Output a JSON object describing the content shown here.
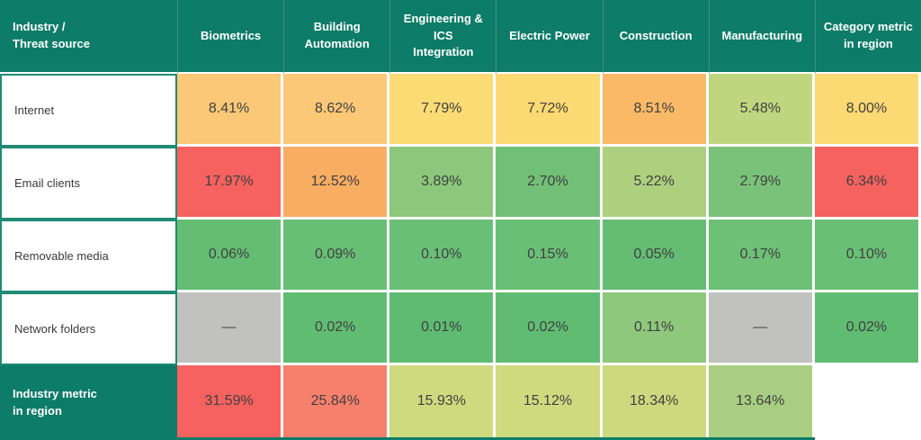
{
  "chart_data": {
    "type": "heatmap",
    "title": "",
    "corner_label": "Industry /\nThreat source",
    "columns": [
      "Biometrics",
      "Building\nAutomation",
      "Engineering & ICS\nIntegration",
      "Electric Power",
      "Construction",
      "Manufacturing",
      "Category metric\nin region"
    ],
    "rows": [
      {
        "label": "Internet",
        "is_footer": false,
        "cells": [
          {
            "value": 8.41,
            "display": "8.41%",
            "bg": "#fbc877"
          },
          {
            "value": 8.62,
            "display": "8.62%",
            "bg": "#fbc877"
          },
          {
            "value": 7.79,
            "display": "7.79%",
            "bg": "#fbdb74"
          },
          {
            "value": 7.72,
            "display": "7.72%",
            "bg": "#fbd973"
          },
          {
            "value": 8.51,
            "display": "8.51%",
            "bg": "#f9b967"
          },
          {
            "value": 5.48,
            "display": "5.48%",
            "bg": "#bed77f"
          },
          {
            "value": 8.0,
            "display": "8.00%",
            "bg": "#fbd973"
          }
        ]
      },
      {
        "label": "Email clients",
        "is_footer": false,
        "cells": [
          {
            "value": 17.97,
            "display": "17.97%",
            "bg": "#f5625f"
          },
          {
            "value": 12.52,
            "display": "12.52%",
            "bg": "#f7ad62"
          },
          {
            "value": 3.89,
            "display": "3.89%",
            "bg": "#8cc77b"
          },
          {
            "value": 2.7,
            "display": "2.70%",
            "bg": "#72c078"
          },
          {
            "value": 5.22,
            "display": "5.22%",
            "bg": "#add07e"
          },
          {
            "value": 2.79,
            "display": "2.79%",
            "bg": "#7ac27a"
          },
          {
            "value": 6.34,
            "display": "6.34%",
            "bg": "#f5625f"
          }
        ]
      },
      {
        "label": "Removable media",
        "is_footer": false,
        "cells": [
          {
            "value": 0.06,
            "display": "0.06%",
            "bg": "#65bd74"
          },
          {
            "value": 0.09,
            "display": "0.09%",
            "bg": "#67be75"
          },
          {
            "value": 0.1,
            "display": "0.10%",
            "bg": "#6abf76"
          },
          {
            "value": 0.15,
            "display": "0.15%",
            "bg": "#6abf76"
          },
          {
            "value": 0.05,
            "display": "0.05%",
            "bg": "#64bd73"
          },
          {
            "value": 0.17,
            "display": "0.17%",
            "bg": "#6ec076"
          },
          {
            "value": 0.1,
            "display": "0.10%",
            "bg": "#6abf76"
          }
        ]
      },
      {
        "label": "Network folders",
        "is_footer": false,
        "cells": [
          {
            "value": null,
            "display": "—",
            "bg": "#c1c1c0"
          },
          {
            "value": 0.02,
            "display": "0.02%",
            "bg": "#60bc72"
          },
          {
            "value": 0.01,
            "display": "0.01%",
            "bg": "#5fbb71"
          },
          {
            "value": 0.02,
            "display": "0.02%",
            "bg": "#60bc72"
          },
          {
            "value": 0.11,
            "display": "0.11%",
            "bg": "#8ec87c"
          },
          {
            "value": null,
            "display": "—",
            "bg": "#c1c1c0"
          },
          {
            "value": 0.02,
            "display": "0.02%",
            "bg": "#60bc72"
          }
        ]
      },
      {
        "label": "Industry metric\nin region",
        "is_footer": true,
        "cells": [
          {
            "value": 31.59,
            "display": "31.59%",
            "bg": "#f5625f"
          },
          {
            "value": 25.84,
            "display": "25.84%",
            "bg": "#f6806c"
          },
          {
            "value": 15.93,
            "display": "15.93%",
            "bg": "#cfda7f"
          },
          {
            "value": 15.12,
            "display": "15.12%",
            "bg": "#cfda7f"
          },
          {
            "value": 18.34,
            "display": "18.34%",
            "bg": "#ccd97e"
          },
          {
            "value": 13.64,
            "display": "13.64%",
            "bg": "#a9ce82"
          },
          {
            "value": null,
            "display": "",
            "bg": "#ffffff"
          }
        ]
      }
    ],
    "legend_position": "none",
    "colors": {
      "header_bg": "#0d7c68",
      "header_text": "#ffffff",
      "header_separator": "#3c947f",
      "label_border": "#1f8b74",
      "cell_text": "#404040",
      "na_cell": "#c1c1c0",
      "low": "#5fbb71",
      "mid": "#fbd973",
      "high": "#f5625f"
    }
  }
}
